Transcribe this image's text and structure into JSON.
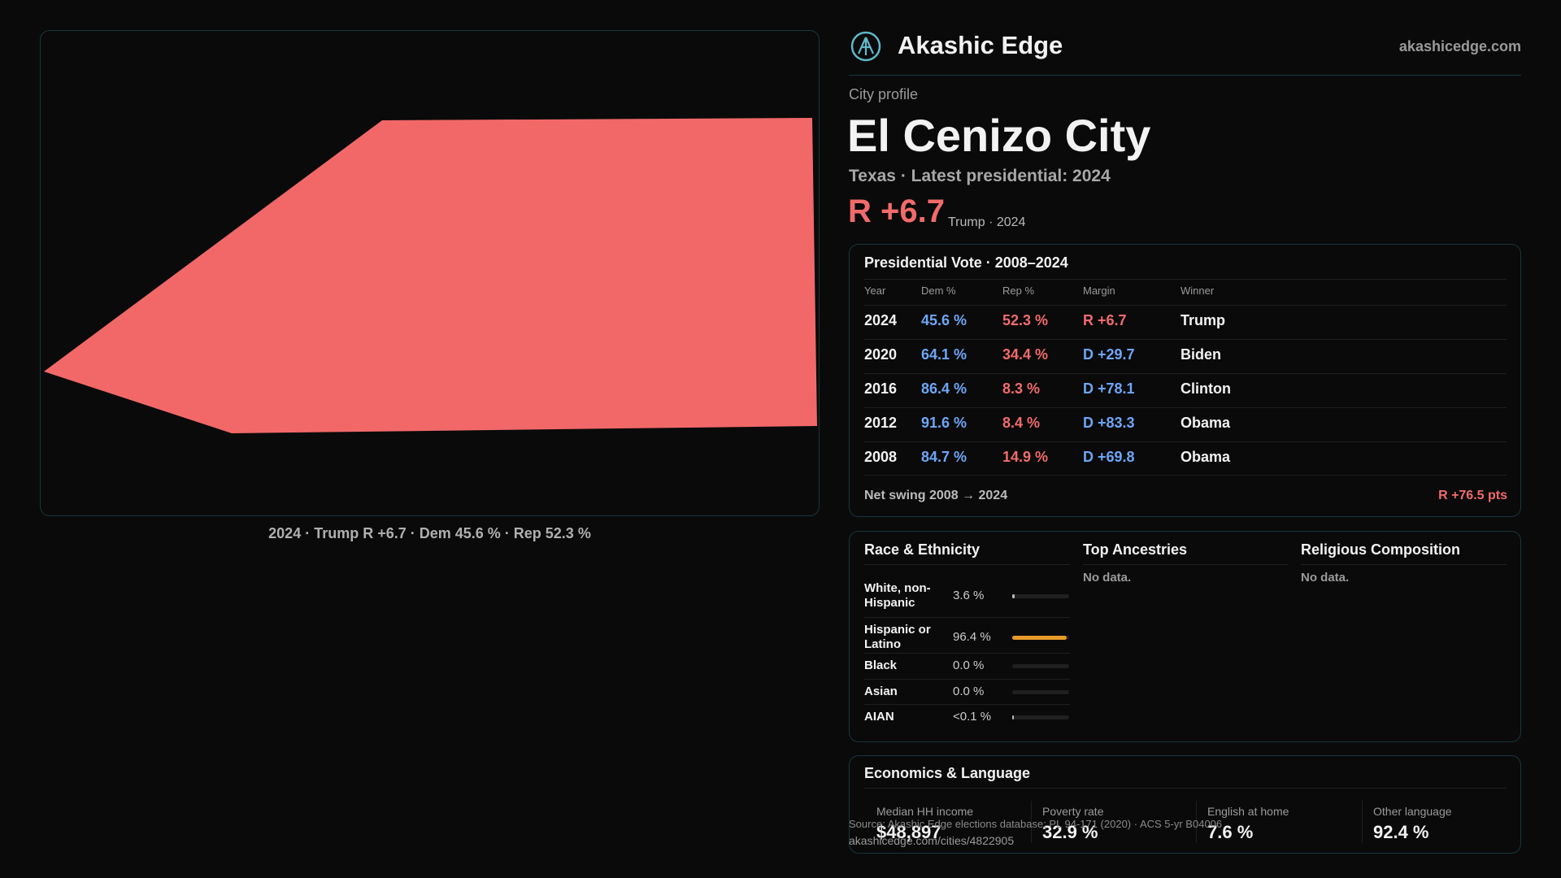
{
  "brand": {
    "name": "Akashic Edge",
    "domain": "akashicedge.com"
  },
  "profile": {
    "kicker": "City profile",
    "title": "El Cenizo City",
    "subtitle": "Texas · Latest presidential: 2024",
    "margin": "R +6.7",
    "margin_note": "Trump · 2024"
  },
  "map_caption": "2024 · Trump R +6.7 · Dem 45.6 % · Rep 52.3 %",
  "vote_table": {
    "title": "Presidential Vote · 2008–2024",
    "columns": [
      "Year",
      "Dem %",
      "Rep %",
      "Margin",
      "Winner"
    ],
    "rows": [
      [
        "2024",
        "45.6 %",
        "52.3 %",
        "R +6.7",
        "Trump"
      ],
      [
        "2020",
        "64.1 %",
        "34.4 %",
        "D +29.7",
        "Biden"
      ],
      [
        "2016",
        "86.4 %",
        "8.3 %",
        "D +78.1",
        "Clinton"
      ],
      [
        "2012",
        "91.6 %",
        "8.4 %",
        "D +83.3",
        "Obama"
      ],
      [
        "2008",
        "84.7 %",
        "14.9 %",
        "D +69.8",
        "Obama"
      ]
    ],
    "swing_label": "Net swing 2008 → 2024",
    "swing_value": "R +76.5 pts"
  },
  "race": {
    "title": "Race & Ethnicity",
    "rows": [
      {
        "label": "White, non-Hispanic",
        "value_label": "3.6 %",
        "value": 3.6
      },
      {
        "label": "Hispanic or Latino",
        "value_label": "96.4 %",
        "value": 96.4
      },
      {
        "label": "Black",
        "value_label": "0.0 %",
        "value": 0
      },
      {
        "label": "Asian",
        "value_label": "0.0 %",
        "value": 0
      },
      {
        "label": "AIAN",
        "value_label": "<0.1 %",
        "value": 0.05
      }
    ]
  },
  "ancestries": {
    "title": "Top Ancestries",
    "empty": "No data."
  },
  "religion": {
    "title": "Religious Composition",
    "empty": "No data."
  },
  "economics": {
    "title": "Economics & Language",
    "stats": [
      {
        "label": "Median HH income",
        "value": "$48,897"
      },
      {
        "label": "Poverty rate",
        "value": "32.9 %"
      },
      {
        "label": "English at home",
        "value": "7.6 %"
      },
      {
        "label": "Other language",
        "value": "92.4 %"
      }
    ]
  },
  "footer": {
    "source": "Source: Akashic Edge elections database; PL 94-171 (2020) · ACS 5-yr B04006",
    "url": "akashicedge.com/cities/4822905"
  }
}
